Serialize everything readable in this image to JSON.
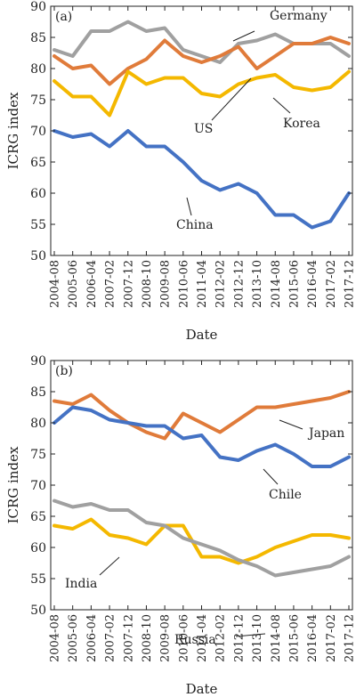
{
  "figure": {
    "dates": [
      "2004-08",
      "2005-06",
      "2006-04",
      "2007-02",
      "2007-12",
      "2008-10",
      "2009-08",
      "2010-06",
      "2011-04",
      "2012-02",
      "2012-12",
      "2013-10",
      "2014-08",
      "2015-06",
      "2016-04",
      "2017-02",
      "2017-12"
    ],
    "xlabel": "Date",
    "ylabel": "ICRG index"
  },
  "chart_data": [
    {
      "type": "line",
      "title": "",
      "panel_tag": "(a)",
      "xlabel": "Date",
      "ylabel": "ICRG index",
      "ylim": [
        50,
        90
      ],
      "yticks": [
        50,
        55,
        60,
        65,
        70,
        75,
        80,
        85,
        90
      ],
      "x": [
        "2004-08",
        "2005-06",
        "2006-04",
        "2007-02",
        "2007-12",
        "2008-10",
        "2009-08",
        "2010-06",
        "2011-04",
        "2012-02",
        "2012-12",
        "2013-10",
        "2014-08",
        "2015-06",
        "2016-04",
        "2017-02",
        "2017-12"
      ],
      "series": [
        {
          "name": "Germany",
          "color": "#a0a0a0",
          "values": [
            83,
            82,
            86,
            86,
            87.5,
            86,
            86.5,
            83,
            82,
            81,
            84,
            84.5,
            85.5,
            84,
            84,
            84,
            82
          ]
        },
        {
          "name": "US",
          "color": "#e07b3a",
          "values": [
            82,
            80,
            80.5,
            77.5,
            80,
            81.5,
            84.5,
            82,
            81,
            82,
            83.5,
            80,
            82,
            84,
            84,
            85,
            84
          ]
        },
        {
          "name": "Korea",
          "color": "#f4b800",
          "values": [
            78,
            75.5,
            75.5,
            72.5,
            79.5,
            77.5,
            78.5,
            78.5,
            76,
            75.5,
            77.5,
            78.5,
            79,
            77,
            76.5,
            77,
            79.5
          ]
        },
        {
          "name": "China",
          "color": "#4472c4",
          "values": [
            70,
            69,
            69.5,
            67.5,
            70,
            67.5,
            67.5,
            65,
            62,
            60.5,
            61.5,
            60,
            56.5,
            56.5,
            54.5,
            55.5,
            60
          ]
        }
      ],
      "annotations": [
        "Germany",
        "US",
        "Korea",
        "China"
      ]
    },
    {
      "type": "line",
      "title": "",
      "panel_tag": "(b)",
      "xlabel": "Date",
      "ylabel": "ICRG index",
      "ylim": [
        50,
        90
      ],
      "yticks": [
        50,
        55,
        60,
        65,
        70,
        75,
        80,
        85,
        90
      ],
      "x": [
        "2004-08",
        "2005-06",
        "2006-04",
        "2007-02",
        "2007-12",
        "2008-10",
        "2009-08",
        "2010-06",
        "2011-04",
        "2012-02",
        "2012-12",
        "2013-10",
        "2014-08",
        "2015-06",
        "2016-04",
        "2017-02",
        "2017-12"
      ],
      "series": [
        {
          "name": "Japan",
          "color": "#e07b3a",
          "values": [
            83.5,
            83,
            84.5,
            82,
            80,
            78.5,
            77.5,
            81.5,
            80,
            78.5,
            80.5,
            82.5,
            82.5,
            83,
            83.5,
            84,
            85
          ]
        },
        {
          "name": "Chile",
          "color": "#4472c4",
          "values": [
            80,
            82.5,
            82,
            80.5,
            80,
            79.5,
            79.5,
            77.5,
            78,
            74.5,
            74,
            75.5,
            76.5,
            75,
            73,
            73,
            74.5
          ]
        },
        {
          "name": "India",
          "color": "#f4b800",
          "values": [
            63.5,
            63,
            64.5,
            62,
            61.5,
            60.5,
            63.5,
            63.5,
            58.5,
            58.5,
            57.5,
            58.5,
            60,
            61,
            62,
            62,
            61.5
          ]
        },
        {
          "name": "Russia",
          "color": "#a0a0a0",
          "values": [
            67.5,
            66.5,
            67,
            66,
            66,
            64,
            63.5,
            61.5,
            60.5,
            59.5,
            58,
            57,
            55.5,
            56,
            56.5,
            57,
            58.5
          ]
        }
      ],
      "annotations": [
        "Japan",
        "Chile",
        "India",
        "Russia"
      ]
    }
  ]
}
